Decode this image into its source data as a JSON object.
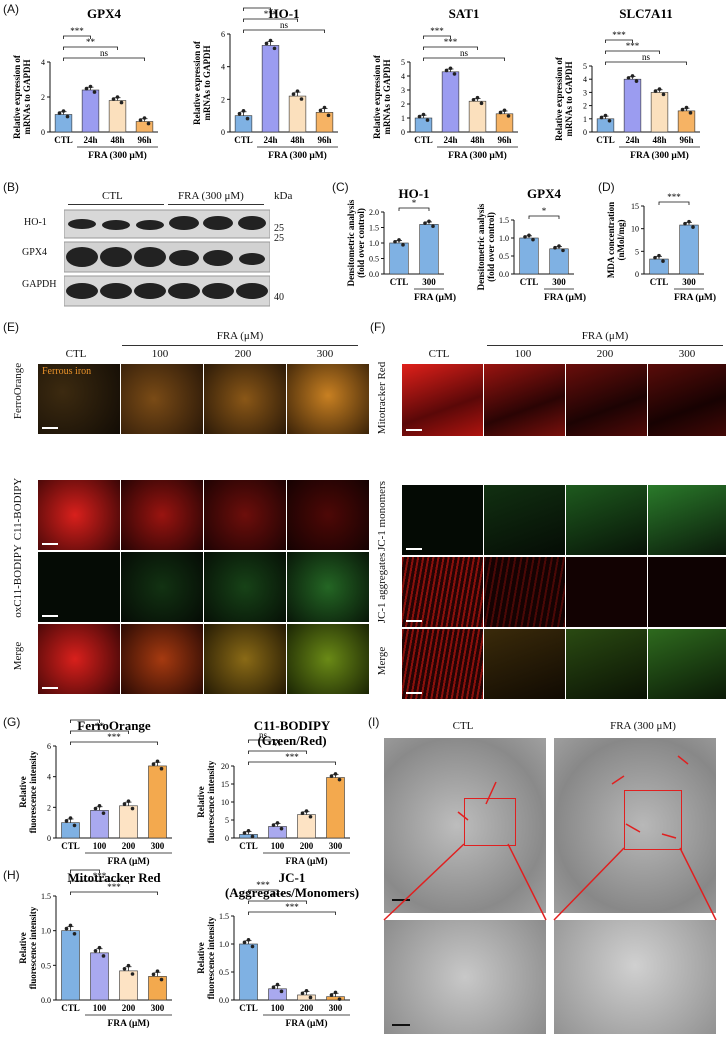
{
  "panels": {
    "A": "(A)",
    "B": "(B)",
    "C": "(C)",
    "D": "(D)",
    "E": "(E)",
    "F": "(F)",
    "G": "(G)",
    "H": "(H)",
    "I": "(I)"
  },
  "colors": {
    "ctl": "#7fb1e3",
    "t24": "#9b9cf0",
    "t48": "#fbe0bd",
    "t96": "#f6b364",
    "d100": "#a9a9ef",
    "d200": "#fde3c4",
    "d300": "#f3a94e",
    "red": "#d9231f",
    "green": "#3aa13a",
    "orange": "#e08a1a"
  },
  "common": {
    "ylabel_mrna": "Relative expression of mRNAs to GAPDH",
    "time_labels": [
      "CTL",
      "24h",
      "48h",
      "96h"
    ],
    "fra300": "FRA (300 μM)",
    "dose_labels": [
      "CTL",
      "100",
      "200",
      "300"
    ],
    "fra_um": "FRA (μM)",
    "ylabel_fluor": "Relative fluorescence intensity",
    "ylabel_densi": "Densitometric analysis (fold over control)",
    "ylabel_mda": "MDA concentration (nMol/mg)",
    "ctl": "CTL",
    "d300": "300"
  },
  "chart_data": [
    {
      "id": "A1",
      "type": "bar",
      "title": "GPX4",
      "categories": [
        "CTL",
        "24h",
        "48h",
        "96h"
      ],
      "values": [
        1.0,
        2.4,
        1.8,
        0.6
      ],
      "ylim": [
        0,
        4
      ],
      "yticks": [
        0,
        2,
        4
      ],
      "sig": [
        {
          "label": "***",
          "from": 0,
          "to": 1
        },
        {
          "label": "**",
          "from": 0,
          "to": 2
        },
        {
          "label": "ns",
          "from": 0,
          "to": 3
        }
      ]
    },
    {
      "id": "A2",
      "type": "bar",
      "title": "HO-1",
      "categories": [
        "CTL",
        "24h",
        "48h",
        "96h"
      ],
      "values": [
        1.0,
        5.3,
        2.2,
        1.2
      ],
      "ylim": [
        0,
        6
      ],
      "yticks": [
        0,
        2,
        4,
        6
      ],
      "sig": [
        {
          "label": "***",
          "from": 0,
          "to": 1
        },
        {
          "label": "***",
          "from": 0,
          "to": 2
        },
        {
          "label": "ns",
          "from": 0,
          "to": 3
        }
      ]
    },
    {
      "id": "A3",
      "type": "bar",
      "title": "SAT1",
      "categories": [
        "CTL",
        "24h",
        "48h",
        "96h"
      ],
      "values": [
        1.0,
        4.3,
        2.2,
        1.3
      ],
      "ylim": [
        0,
        5
      ],
      "yticks": [
        0,
        1,
        2,
        3,
        4,
        5
      ],
      "sig": [
        {
          "label": "***",
          "from": 0,
          "to": 1
        },
        {
          "label": "***",
          "from": 0,
          "to": 2
        },
        {
          "label": "ns",
          "from": 0,
          "to": 3
        }
      ]
    },
    {
      "id": "A4",
      "type": "bar",
      "title": "SLC7A11",
      "categories": [
        "CTL",
        "24h",
        "48h",
        "96h"
      ],
      "values": [
        1.0,
        4.0,
        3.0,
        1.6
      ],
      "ylim": [
        0,
        5
      ],
      "yticks": [
        0,
        1,
        2,
        3,
        4,
        5
      ],
      "sig": [
        {
          "label": "***",
          "from": 0,
          "to": 1
        },
        {
          "label": "***",
          "from": 0,
          "to": 2
        },
        {
          "label": "ns",
          "from": 0,
          "to": 3
        }
      ]
    },
    {
      "id": "C1",
      "type": "bar",
      "title": "HO-1",
      "categories": [
        "CTL",
        "300"
      ],
      "values": [
        1.0,
        1.6
      ],
      "ylim": [
        0,
        2.0
      ],
      "yticks": [
        0.0,
        0.5,
        1.0,
        1.5,
        2.0
      ],
      "sig": [
        {
          "label": "*",
          "from": 0,
          "to": 1
        }
      ]
    },
    {
      "id": "C2",
      "type": "bar",
      "title": "GPX4",
      "categories": [
        "CTL",
        "300"
      ],
      "values": [
        1.0,
        0.7
      ],
      "ylim": [
        0,
        1.5
      ],
      "yticks": [
        0.0,
        0.5,
        1.0,
        1.5
      ],
      "sig": [
        {
          "label": "*",
          "from": 0,
          "to": 1
        }
      ]
    },
    {
      "id": "D1",
      "type": "bar",
      "title": "",
      "categories": [
        "CTL",
        "300"
      ],
      "values": [
        3.3,
        10.8
      ],
      "ylim": [
        0,
        15
      ],
      "yticks": [
        0,
        5,
        10,
        15
      ],
      "sig": [
        {
          "label": "***",
          "from": 0,
          "to": 1
        }
      ]
    },
    {
      "id": "G1",
      "type": "bar",
      "title": "FerroOrange",
      "categories": [
        "CTL",
        "100",
        "200",
        "300"
      ],
      "values": [
        1.0,
        1.8,
        2.1,
        4.7
      ],
      "ylim": [
        0,
        6
      ],
      "yticks": [
        0,
        2,
        4,
        6
      ],
      "sig": [
        {
          "label": "*",
          "from": 0,
          "to": 1
        },
        {
          "label": "**",
          "from": 0,
          "to": 2
        },
        {
          "label": "***",
          "from": 0,
          "to": 3
        }
      ]
    },
    {
      "id": "G2",
      "type": "bar",
      "title": "C11-BODIPY (Green/Red)",
      "categories": [
        "CTL",
        "100",
        "200",
        "300"
      ],
      "values": [
        1.0,
        3.2,
        6.5,
        16.8
      ],
      "ylim": [
        0,
        20
      ],
      "yticks": [
        0,
        5,
        10,
        15,
        20
      ],
      "sig": [
        {
          "label": "ns",
          "from": 0,
          "to": 1
        },
        {
          "label": "**",
          "from": 0,
          "to": 2
        },
        {
          "label": "***",
          "from": 0,
          "to": 3
        }
      ]
    },
    {
      "id": "H1",
      "type": "bar",
      "title": "Mitotracker Red",
      "categories": [
        "CTL",
        "100",
        "200",
        "300"
      ],
      "values": [
        1.0,
        0.68,
        0.42,
        0.34
      ],
      "ylim": [
        0,
        1.5
      ],
      "yticks": [
        0.0,
        0.5,
        1.0,
        1.5
      ],
      "sig": [
        {
          "label": "***",
          "from": 0,
          "to": 1
        },
        {
          "label": "***",
          "from": 0,
          "to": 2
        },
        {
          "label": "***",
          "from": 0,
          "to": 3
        }
      ]
    },
    {
      "id": "H2",
      "type": "bar",
      "title": "JC-1 (Aggregates/Monomers)",
      "categories": [
        "CTL",
        "100",
        "200",
        "300"
      ],
      "values": [
        1.0,
        0.2,
        0.09,
        0.06
      ],
      "ylim": [
        0,
        1.5
      ],
      "yticks": [
        0.0,
        0.5,
        1.0,
        1.5
      ],
      "sig": [
        {
          "label": "***",
          "from": 0,
          "to": 1
        },
        {
          "label": "***",
          "from": 0,
          "to": 2
        },
        {
          "label": "***",
          "from": 0,
          "to": 3
        }
      ]
    }
  ],
  "blot": {
    "ctl": "CTL",
    "fra": "FRA (300 μM)",
    "kda": "kDa",
    "rows": [
      "HO-1",
      "GPX4",
      "GAPDH"
    ],
    "markers": [
      "25",
      "25",
      "40"
    ]
  },
  "micro_E": {
    "header": "FRA (μM)",
    "cols": [
      "CTL",
      "100",
      "200",
      "300"
    ],
    "rows": [
      "FerroOrange",
      "C11-BODIPY",
      "oxC11-BODIPY",
      "Merge"
    ],
    "inset": "Ferrous iron"
  },
  "micro_F": {
    "header": "FRA (μM)",
    "cols": [
      "CTL",
      "100",
      "200",
      "300"
    ],
    "rows": [
      "Mitotracker Red",
      "JC-1 monomers",
      "JC-1 aggregates",
      "Merge"
    ]
  },
  "tem": {
    "cols": [
      "CTL",
      "FRA (300 μM)"
    ]
  }
}
